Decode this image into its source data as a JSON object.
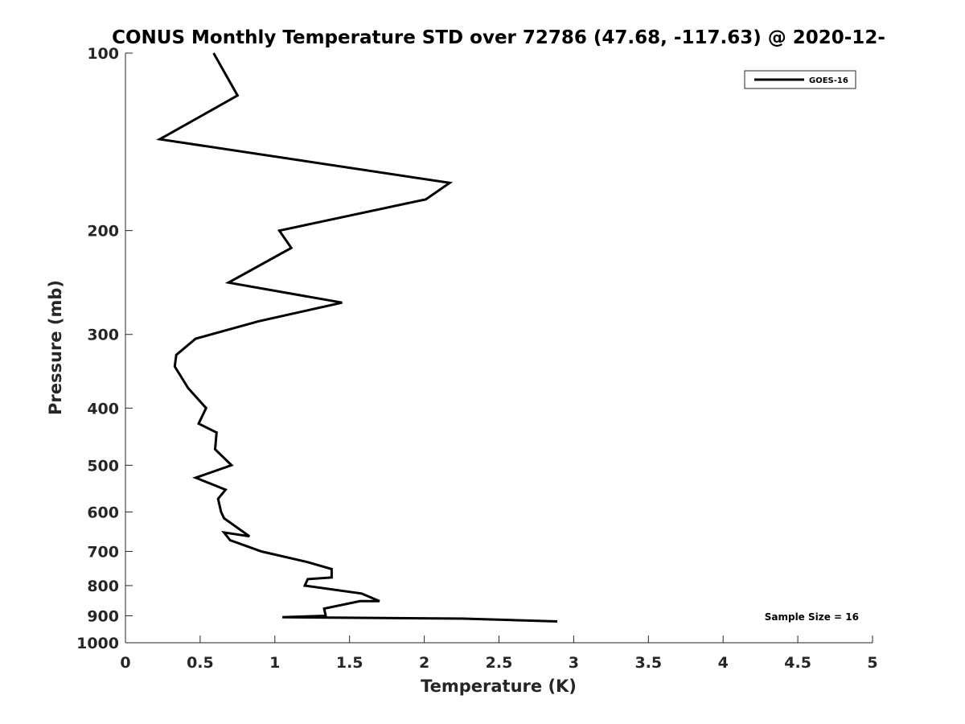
{
  "chart_data": {
    "type": "line",
    "title": "CONUS Monthly Temperature STD over 72786 (47.68, -117.63) @ 2020-12-",
    "xlabel": "Temperature (K)",
    "ylabel": "Pressure (mb)",
    "xlim": [
      0,
      5
    ],
    "ylim": [
      100,
      1000
    ],
    "y_scale": "log",
    "y_reversed": true,
    "x_ticks": [
      0,
      0.5,
      1,
      1.5,
      2,
      2.5,
      3,
      3.5,
      4,
      4.5,
      5
    ],
    "x_tick_labels": [
      "0",
      "0.5",
      "1",
      "1.5",
      "2",
      "2.5",
      "3",
      "3.5",
      "4",
      "4.5",
      "5"
    ],
    "y_ticks": [
      100,
      200,
      300,
      400,
      500,
      600,
      700,
      800,
      900,
      1000
    ],
    "y_tick_labels": [
      "100",
      "200",
      "300",
      "400",
      "500",
      "600",
      "700",
      "800",
      "900",
      "1000"
    ],
    "grid": false,
    "legend_position": "top-right",
    "annotation": "Sample Size = 16",
    "series": [
      {
        "name": "GOES-16",
        "color": "#000000",
        "x": [
          0.59,
          0.75,
          0.23,
          2.17,
          2.01,
          1.03,
          1.11,
          0.69,
          1.45,
          0.89,
          0.47,
          0.34,
          0.33,
          0.42,
          0.54,
          0.49,
          0.61,
          0.6,
          0.71,
          0.47,
          0.67,
          0.62,
          0.64,
          0.66,
          0.83,
          0.66,
          0.7,
          0.91,
          1.22,
          1.38,
          1.38,
          1.22,
          1.2,
          1.58,
          1.7,
          1.57,
          1.33,
          1.34,
          1.05,
          2.26,
          2.89
        ],
        "y": [
          100,
          118,
          140,
          166,
          177,
          200,
          214,
          245,
          265,
          285,
          305,
          325,
          340,
          370,
          400,
          425,
          440,
          470,
          500,
          525,
          550,
          570,
          600,
          615,
          660,
          650,
          670,
          700,
          730,
          750,
          775,
          780,
          800,
          825,
          850,
          850,
          875,
          900,
          905,
          910,
          920
        ]
      }
    ]
  }
}
